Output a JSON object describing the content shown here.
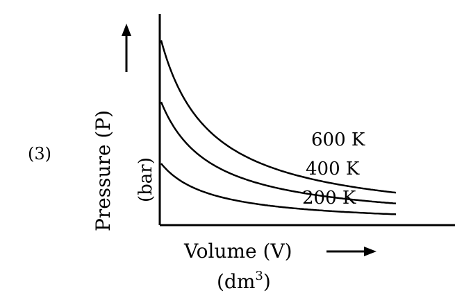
{
  "figure_label": "(3)",
  "chart_data": {
    "type": "line",
    "ylabel": "Pressure (P)",
    "ylabel_unit": "(bar)",
    "xlabel": "Volume (V)",
    "xlabel_unit_base": "(dm",
    "xlabel_unit_exp": "3",
    "xlabel_unit_close": ")",
    "grid": false,
    "axis_ticks": false,
    "series": [
      {
        "name": "200 K",
        "temperature": 200
      },
      {
        "name": "400 K",
        "temperature": 400
      },
      {
        "name": "600 K",
        "temperature": 600
      }
    ]
  }
}
